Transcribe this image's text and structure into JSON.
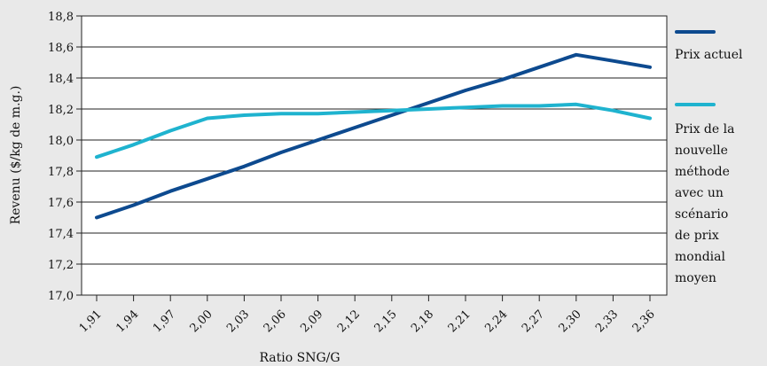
{
  "chart_data": {
    "type": "line",
    "xlabel": "Ratio SNG/G",
    "ylabel": "Revenu ($/kg de m.g.)",
    "ylim": [
      17.0,
      18.8
    ],
    "yticks": [
      "17,0",
      "17,2",
      "17,4",
      "17,6",
      "17,8",
      "18,0",
      "18,2",
      "18,4",
      "18,6",
      "18,8"
    ],
    "categories": [
      "1,91",
      "1,94",
      "1,97",
      "2,00",
      "2,03",
      "2,06",
      "2,09",
      "2,12",
      "2,15",
      "2,18",
      "2,21",
      "2,24",
      "2,27",
      "2,30",
      "2,33",
      "2,36"
    ],
    "grid": true,
    "legend_position": "right",
    "series": [
      {
        "name": "Prix actuel",
        "color": "#0d4a8f",
        "values": [
          17.5,
          17.58,
          17.67,
          17.75,
          17.83,
          17.92,
          18.0,
          18.08,
          18.16,
          18.24,
          18.32,
          18.39,
          18.47,
          18.55,
          18.51,
          18.47
        ]
      },
      {
        "name": "Prix de la nouvelle méthode avec un scénario de prix mondial moyen",
        "name_lines": [
          "Prix de la",
          "nouvelle",
          "méthode",
          "avec un",
          "scénario",
          "de prix",
          "mondial",
          "moyen"
        ],
        "color": "#1fb3cf",
        "values": [
          17.89,
          17.97,
          18.06,
          18.14,
          18.16,
          18.17,
          18.17,
          18.18,
          18.19,
          18.2,
          18.21,
          18.22,
          18.22,
          18.23,
          18.19,
          18.14
        ]
      }
    ]
  }
}
